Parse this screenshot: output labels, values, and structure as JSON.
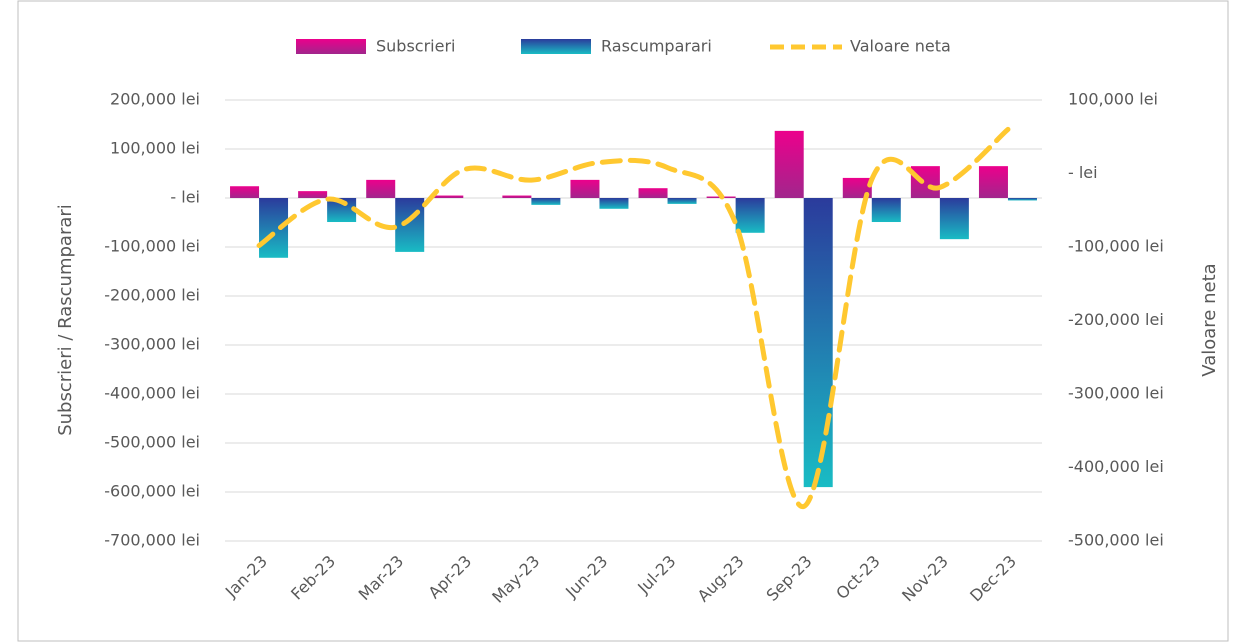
{
  "chart_data": {
    "type": "bar-line",
    "categories": [
      "Jan-23",
      "Feb-23",
      "Mar-23",
      "Apr-23",
      "May-23",
      "Jun-23",
      "Jul-23",
      "Aug-23",
      "Sep-23",
      "Oct-23",
      "Nov-23",
      "Dec-23"
    ],
    "series": [
      {
        "name": "Subscrieri",
        "type": "bar",
        "gradient": [
          "#ec008c",
          "#a1268c"
        ],
        "values": [
          24000,
          14000,
          37000,
          5000,
          5000,
          37000,
          20000,
          3000,
          137000,
          41000,
          65000,
          65000
        ]
      },
      {
        "name": "Rascumparari",
        "type": "bar",
        "gradient": [
          "#2b3b9c",
          "#19bcc4"
        ],
        "values": [
          -122000,
          -49000,
          -110000,
          0,
          -14000,
          -22000,
          -12000,
          -71000,
          -590000,
          -49000,
          -84000,
          -5000
        ]
      },
      {
        "name": "Valoare neta",
        "type": "line",
        "axis": "y2",
        "color": "#ffc830",
        "dashed": true,
        "values": [
          -98000,
          -35000,
          -73000,
          5000,
          -9000,
          15000,
          8000,
          -68000,
          -453000,
          -8000,
          -19000,
          60000
        ]
      }
    ],
    "ylabel": "Subscrieri / Rascumparari",
    "y2label": "Valoare neta",
    "ylim": [
      -700000,
      200000
    ],
    "yticks": [
      {
        "value": 200000,
        "label": "200,000 lei"
      },
      {
        "value": 100000,
        "label": "100,000 lei"
      },
      {
        "value": 0,
        "label": "- lei"
      },
      {
        "value": -100000,
        "label": "-100,000 lei"
      },
      {
        "value": -200000,
        "label": "-200,000 lei"
      },
      {
        "value": -300000,
        "label": "-300,000 lei"
      },
      {
        "value": -400000,
        "label": "-400,000 lei"
      },
      {
        "value": -500000,
        "label": "-500,000 lei"
      },
      {
        "value": -600000,
        "label": "-600,000 lei"
      },
      {
        "value": -700000,
        "label": "-700,000 lei"
      }
    ],
    "y2lim": [
      -500000,
      100000
    ],
    "y2ticks": [
      {
        "value": 100000,
        "label": "100,000 lei"
      },
      {
        "value": 0,
        "label": "- lei"
      },
      {
        "value": -100000,
        "label": "-100,000 lei"
      },
      {
        "value": -200000,
        "label": "-200,000 lei"
      },
      {
        "value": -300000,
        "label": "-300,000 lei"
      },
      {
        "value": -400000,
        "label": "-400,000 lei"
      },
      {
        "value": -500000,
        "label": "-500,000 lei"
      }
    ],
    "grid": true,
    "legend": "top"
  }
}
